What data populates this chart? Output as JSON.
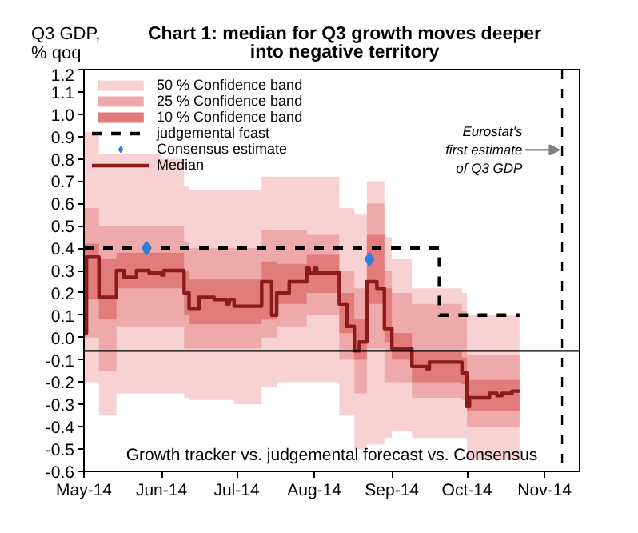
{
  "chart_data": {
    "type": "step",
    "title": "Chart 1: median for Q3 growth moves deeper into negative territory",
    "ylabel": "Q3 GDP, % qoq",
    "xlim": [
      "2014-05-01",
      "2014-11-15"
    ],
    "ylim": [
      -0.6,
      1.2
    ],
    "xticks": [
      {
        "value": "2014-05-01",
        "label": "May-14"
      },
      {
        "value": "2014-06-01",
        "label": "Jun-14"
      },
      {
        "value": "2014-07-01",
        "label": "Jul-14"
      },
      {
        "value": "2014-08-01",
        "label": "Aug-14"
      },
      {
        "value": "2014-09-01",
        "label": "Sep-14"
      },
      {
        "value": "2014-10-01",
        "label": "Oct-14"
      },
      {
        "value": "2014-11-01",
        "label": "Nov-14"
      }
    ],
    "yticks": [
      -0.6,
      -0.5,
      -0.4,
      -0.3,
      -0.2,
      -0.1,
      {
        "value": 0,
        "label": "0.0"
      },
      0.1,
      0.2,
      0.3,
      0.4,
      0.5,
      0.6,
      0.7,
      0.8,
      0.9,
      {
        "value": 1,
        "label": "1.0"
      },
      1.1,
      1.2
    ],
    "x": [
      "2014-05-01",
      "2014-05-02",
      "2014-05-07",
      "2014-05-14",
      "2014-05-17",
      "2014-05-22",
      "2014-05-27",
      "2014-06-01",
      "2014-06-02",
      "2014-06-10",
      "2014-06-12",
      "2014-06-16",
      "2014-06-22",
      "2014-06-27",
      "2014-06-28",
      "2014-06-30",
      "2014-07-11",
      "2014-07-15",
      "2014-07-17",
      "2014-07-22",
      "2014-07-29",
      "2014-07-30",
      "2014-08-01",
      "2014-08-02",
      "2014-08-11",
      "2014-08-14",
      "2014-08-17",
      "2014-08-19",
      "2014-08-22",
      "2014-08-26",
      "2014-08-29",
      "2014-09-01",
      "2014-09-09",
      "2014-09-15",
      "2014-09-16",
      "2014-09-29",
      "2014-10-01",
      "2014-10-02",
      "2014-10-10",
      "2014-10-13",
      "2014-10-15",
      "2014-10-19",
      "2014-10-22"
    ],
    "series": [
      {
        "name": "50 % Confidence band",
        "color": "#f8d2d2",
        "x": [
          "2014-05-01",
          "2014-05-07",
          "2014-05-14",
          "2014-06-01",
          "2014-06-10",
          "2014-06-12",
          "2014-06-30",
          "2014-07-11",
          "2014-07-17",
          "2014-07-29",
          "2014-08-11",
          "2014-08-17",
          "2014-08-22",
          "2014-08-29",
          "2014-09-01",
          "2014-09-09",
          "2014-09-29",
          "2014-10-01",
          "2014-10-22"
        ],
        "values": [
          null,
          null,
          null,
          null,
          null,
          null,
          null,
          null,
          null,
          null,
          null,
          null,
          null,
          null,
          null,
          null,
          null,
          null,
          null
        ],
        "lower": [
          -0.2,
          -0.35,
          -0.25,
          -0.25,
          -0.27,
          -0.28,
          -0.3,
          -0.22,
          -0.2,
          -0.2,
          -0.35,
          -0.5,
          -0.48,
          -0.45,
          -0.42,
          -0.45,
          -0.45,
          -0.55,
          -0.55
        ],
        "upper": [
          0.92,
          0.82,
          0.82,
          0.8,
          0.68,
          0.66,
          0.66,
          0.72,
          0.72,
          0.72,
          0.58,
          0.55,
          0.7,
          0.45,
          0.35,
          0.22,
          0.2,
          0.1,
          0.1
        ]
      },
      {
        "name": "25 % Confidence band",
        "color": "#eeaaaa",
        "x": [
          "2014-05-01",
          "2014-05-07",
          "2014-05-14",
          "2014-06-01",
          "2014-06-10",
          "2014-06-12",
          "2014-06-30",
          "2014-07-11",
          "2014-07-17",
          "2014-07-29",
          "2014-08-11",
          "2014-08-17",
          "2014-08-22",
          "2014-08-29",
          "2014-09-01",
          "2014-09-09",
          "2014-09-29",
          "2014-10-01",
          "2014-10-22"
        ],
        "values": [
          null,
          null,
          null,
          null,
          null,
          null,
          null,
          null,
          null,
          null,
          null,
          null,
          null,
          null,
          null,
          null,
          null,
          null,
          null
        ],
        "lower": [
          0.0,
          -0.15,
          0.05,
          0.05,
          -0.05,
          -0.05,
          -0.05,
          0.0,
          0.05,
          0.1,
          -0.1,
          -0.25,
          -0.05,
          -0.2,
          -0.2,
          -0.27,
          -0.28,
          -0.4,
          -0.4
        ],
        "upper": [
          0.58,
          0.5,
          0.5,
          0.5,
          0.43,
          0.4,
          0.4,
          0.48,
          0.48,
          0.46,
          0.3,
          0.22,
          0.6,
          0.3,
          0.2,
          0.15,
          0.12,
          -0.08,
          -0.08
        ]
      },
      {
        "name": "10 % Confidence band",
        "color": "#e07c7c",
        "x": [
          "2014-05-01",
          "2014-05-07",
          "2014-05-14",
          "2014-06-01",
          "2014-06-10",
          "2014-06-12",
          "2014-06-30",
          "2014-07-11",
          "2014-07-17",
          "2014-07-29",
          "2014-08-11",
          "2014-08-17",
          "2014-08-22",
          "2014-08-29",
          "2014-09-01",
          "2014-09-09",
          "2014-09-29",
          "2014-10-01",
          "2014-10-22"
        ],
        "values": [
          null,
          null,
          null,
          null,
          null,
          null,
          null,
          null,
          null,
          null,
          null,
          null,
          null,
          null,
          null,
          null,
          null,
          null,
          null
        ],
        "lower": [
          0.17,
          0.08,
          0.22,
          0.22,
          0.1,
          0.06,
          0.06,
          0.08,
          0.15,
          0.2,
          0.02,
          -0.1,
          0.15,
          -0.02,
          -0.1,
          -0.2,
          -0.21,
          -0.33,
          -0.33
        ],
        "upper": [
          0.42,
          0.35,
          0.38,
          0.38,
          0.3,
          0.26,
          0.26,
          0.34,
          0.33,
          0.37,
          0.2,
          0.08,
          0.46,
          0.22,
          0.02,
          -0.06,
          -0.09,
          -0.19,
          -0.19
        ]
      },
      {
        "name": "judgemental fcast",
        "color": "#000000",
        "line_style": "dashed",
        "x": [
          "2014-05-01",
          "2014-09-20",
          "2014-10-22"
        ],
        "values": [
          0.4,
          0.1,
          0.1
        ]
      },
      {
        "name": "Consensus estimate",
        "type": "scatter",
        "marker": "diamond",
        "color": "#2f7fd8",
        "x": [
          "2014-05-26",
          "2014-08-23"
        ],
        "values": [
          0.4,
          0.35
        ]
      },
      {
        "name": "Median",
        "color": "#8b1a1a",
        "values": [
          0.02,
          0.36,
          0.18,
          0.3,
          0.27,
          0.3,
          0.29,
          0.28,
          0.3,
          0.2,
          0.13,
          0.18,
          0.17,
          0.15,
          0.17,
          0.14,
          0.25,
          0.1,
          0.2,
          0.25,
          0.31,
          0.29,
          0.31,
          0.29,
          0.15,
          0.05,
          -0.06,
          -0.02,
          0.25,
          0.22,
          0.04,
          -0.05,
          -0.13,
          -0.14,
          -0.11,
          -0.16,
          -0.31,
          -0.27,
          -0.25,
          -0.26,
          -0.25,
          -0.24,
          -0.24
        ]
      }
    ],
    "ref_lines": [
      {
        "axis": "y",
        "value": -0.06,
        "color": "#000000"
      },
      {
        "axis": "x",
        "value": "2014-11-08",
        "label": "Eurostat's first estimate of Q3 GDP",
        "color": "#000000",
        "line_style": "dashed"
      }
    ],
    "annotations": [
      "Growth tracker vs. judgemental forecast vs. Consensus"
    ],
    "legend": "top left"
  }
}
